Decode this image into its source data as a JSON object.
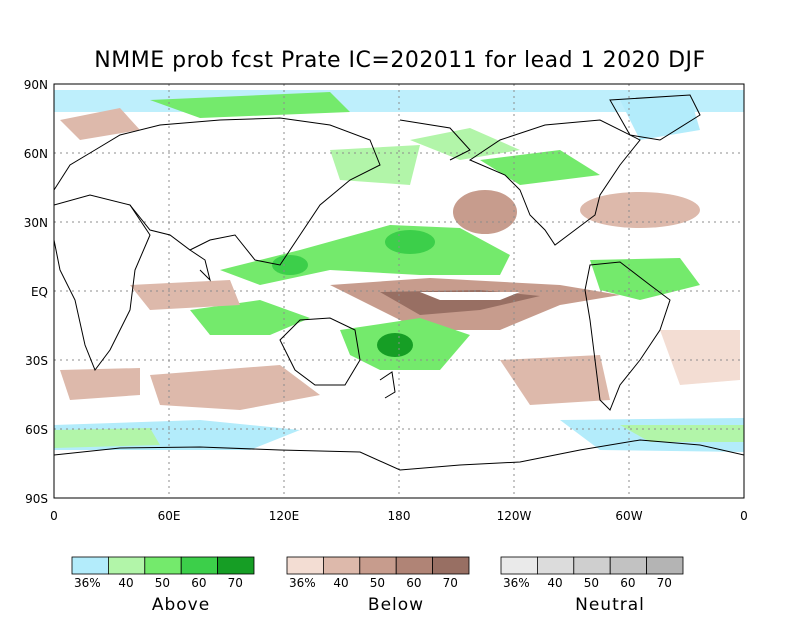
{
  "title": "NMME prob fcst Prate IC=202011 for lead 1 2020 DJF",
  "axes": {
    "y_ticks": [
      "90N",
      "60N",
      "30N",
      "EQ",
      "30S",
      "60S",
      "90S"
    ],
    "x_ticks": [
      "0",
      "60E",
      "120E",
      "180",
      "120W",
      "60W",
      "0"
    ]
  },
  "legends": [
    {
      "title": "Above",
      "labels": [
        "36%",
        "40",
        "50",
        "60",
        "70"
      ],
      "colors": [
        "#b3ecfb",
        "#b2f5a9",
        "#74ea6c",
        "#3ccf4a",
        "#169e25"
      ]
    },
    {
      "title": "Below",
      "labels": [
        "36%",
        "40",
        "50",
        "60",
        "70"
      ],
      "colors": [
        "#f3ddd3",
        "#ddb9ab",
        "#c79c8d",
        "#b08476",
        "#986f63"
      ]
    },
    {
      "title": "Neutral",
      "labels": [
        "36%",
        "40",
        "50",
        "60",
        "70"
      ],
      "colors": [
        "#eaeaea",
        "#dcdcdc",
        "#cfcfcf",
        "#c2c2c2",
        "#b4b4b4"
      ]
    }
  ],
  "palette": {
    "frame": "#000000",
    "grid": "#8c8c8c",
    "coast": "#000000"
  }
}
